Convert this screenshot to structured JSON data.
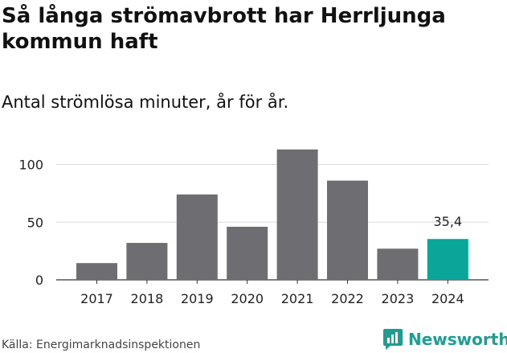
{
  "header": {
    "title": "Så långa strömavbrott har Herrljunga kommun haft",
    "subtitle": "Antal strömlösa minuter, år för år."
  },
  "footer": {
    "source": "Källa: Energimarknadsinspektionen",
    "brand": "Newsworthy"
  },
  "colors": {
    "bar": "#6e6d72",
    "highlight": "#0aa699",
    "grid": "#dddddd",
    "axis": "#333333",
    "brand": "#1e9e93"
  },
  "chart_data": {
    "type": "bar",
    "categories": [
      "2017",
      "2018",
      "2019",
      "2020",
      "2021",
      "2022",
      "2023",
      "2024"
    ],
    "values": [
      14.5,
      32,
      74,
      46,
      113,
      86,
      27,
      35.4
    ],
    "highlight_index": 7,
    "value_labels": [
      "",
      "",
      "",
      "",
      "",
      "",
      "",
      "35,4"
    ],
    "yticks": [
      "0",
      "50",
      "100"
    ],
    "ytick_values": [
      0,
      50,
      100
    ],
    "ylim": [
      0,
      120
    ],
    "grid": true
  }
}
